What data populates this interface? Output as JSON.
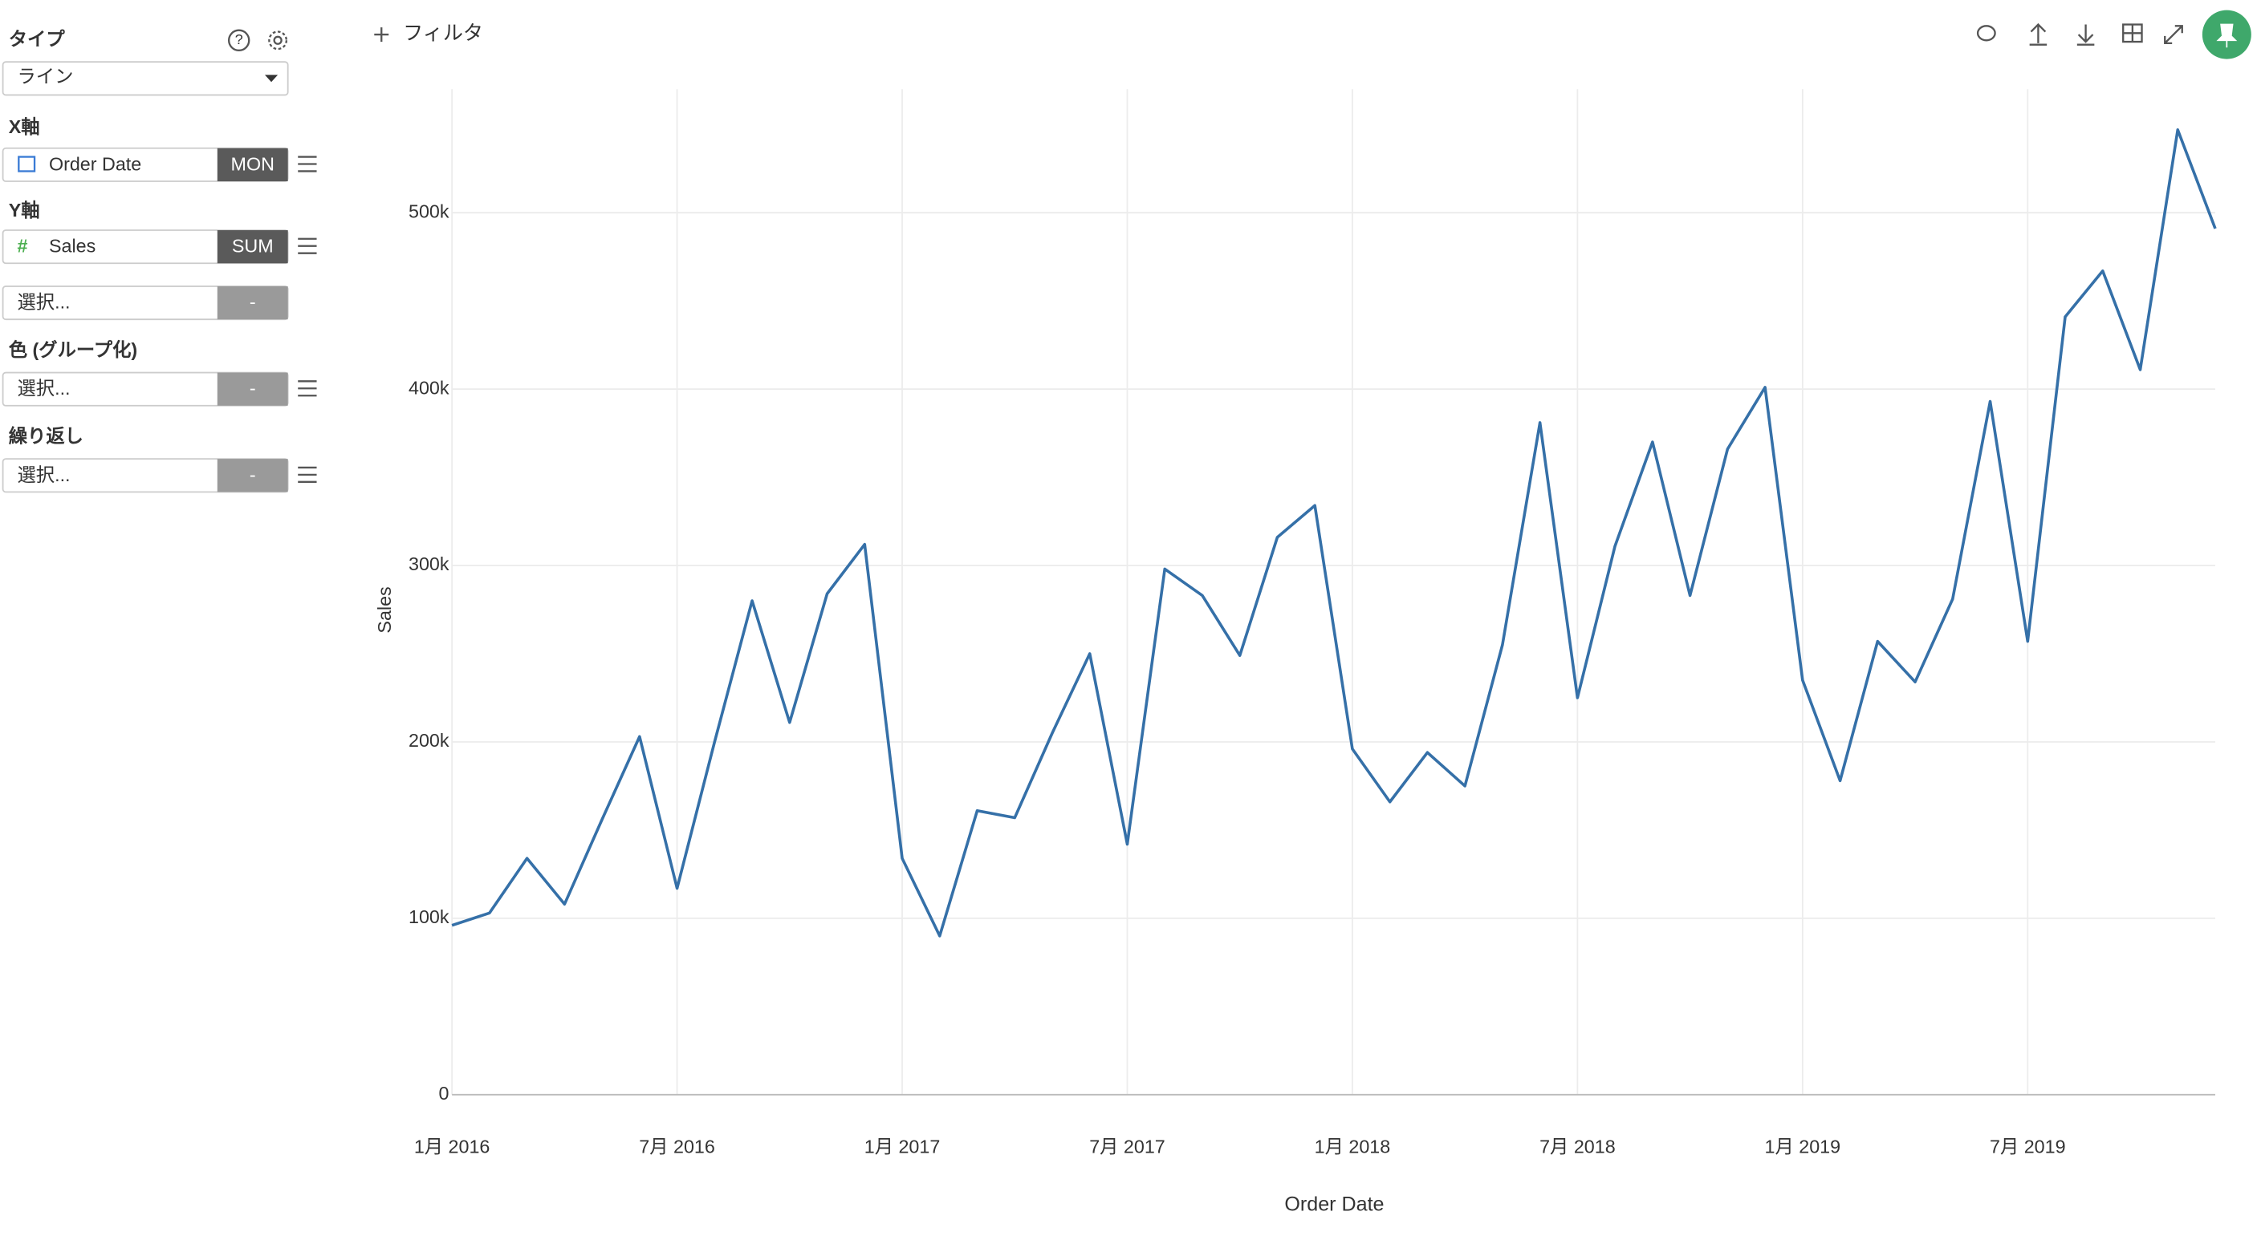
{
  "sidebar": {
    "type_label": "タイプ",
    "type_value": "ライン",
    "x_label": "X軸",
    "x_field": "Order Date",
    "x_agg": "MON",
    "y_label": "Y軸",
    "y_field": "Sales",
    "y_agg": "SUM",
    "y2_field": "選択...",
    "y2_agg": "-",
    "color_label": "色 (グループ化)",
    "color_field": "選択...",
    "color_agg": "-",
    "repeat_label": "繰り返し",
    "repeat_field": "選択...",
    "repeat_agg": "-"
  },
  "toolbar": {
    "filter": "フィルタ"
  },
  "chart_data": {
    "type": "line",
    "x_label": "Order Date",
    "y_label": "Sales",
    "color": "#3570a8",
    "grid": true,
    "x": [
      "2016-01",
      "2016-02",
      "2016-03",
      "2016-04",
      "2016-05",
      "2016-06",
      "2016-07",
      "2016-08",
      "2016-09",
      "2016-10",
      "2016-11",
      "2016-12",
      "2017-01",
      "2017-02",
      "2017-03",
      "2017-04",
      "2017-05",
      "2017-06",
      "2017-07",
      "2017-08",
      "2017-09",
      "2017-10",
      "2017-11",
      "2017-12",
      "2018-01",
      "2018-02",
      "2018-03",
      "2018-04",
      "2018-05",
      "2018-06",
      "2018-07",
      "2018-08",
      "2018-09",
      "2018-10",
      "2018-11",
      "2018-12",
      "2019-01",
      "2019-02",
      "2019-03",
      "2019-04",
      "2019-05",
      "2019-06",
      "2019-07",
      "2019-08",
      "2019-09",
      "2019-10",
      "2019-11",
      "2019-12"
    ],
    "values": [
      96000,
      103000,
      134000,
      108000,
      156000,
      203000,
      117000,
      200000,
      280000,
      211000,
      284000,
      312000,
      134000,
      90000,
      161000,
      157000,
      205000,
      250000,
      142000,
      298000,
      283000,
      249000,
      316000,
      334000,
      196000,
      166000,
      194000,
      175000,
      255000,
      381000,
      225000,
      311000,
      370000,
      283000,
      366000,
      401000,
      235000,
      178000,
      257000,
      234000,
      281000,
      393000,
      257000,
      441000,
      467000,
      411000,
      547000,
      491000
    ],
    "xlim": [
      "2016-01",
      "2019-12"
    ],
    "xticks": [
      {
        "value": "2016-01",
        "label": "1月 2016"
      },
      {
        "value": "2016-07",
        "label": "7月 2016"
      },
      {
        "value": "2017-01",
        "label": "1月 2017"
      },
      {
        "value": "2017-07",
        "label": "7月 2017"
      },
      {
        "value": "2018-01",
        "label": "1月 2018"
      },
      {
        "value": "2018-07",
        "label": "7月 2018"
      },
      {
        "value": "2019-01",
        "label": "1月 2019"
      },
      {
        "value": "2019-07",
        "label": "7月 2019"
      }
    ],
    "ylim": [
      0,
      570000
    ],
    "yticks": [
      0,
      {
        "value": 100000,
        "label": "100k"
      },
      {
        "value": 200000,
        "label": "200k"
      },
      {
        "value": 300000,
        "label": "300k"
      },
      {
        "value": 400000,
        "label": "400k"
      },
      {
        "value": 500000,
        "label": "500k"
      }
    ]
  }
}
